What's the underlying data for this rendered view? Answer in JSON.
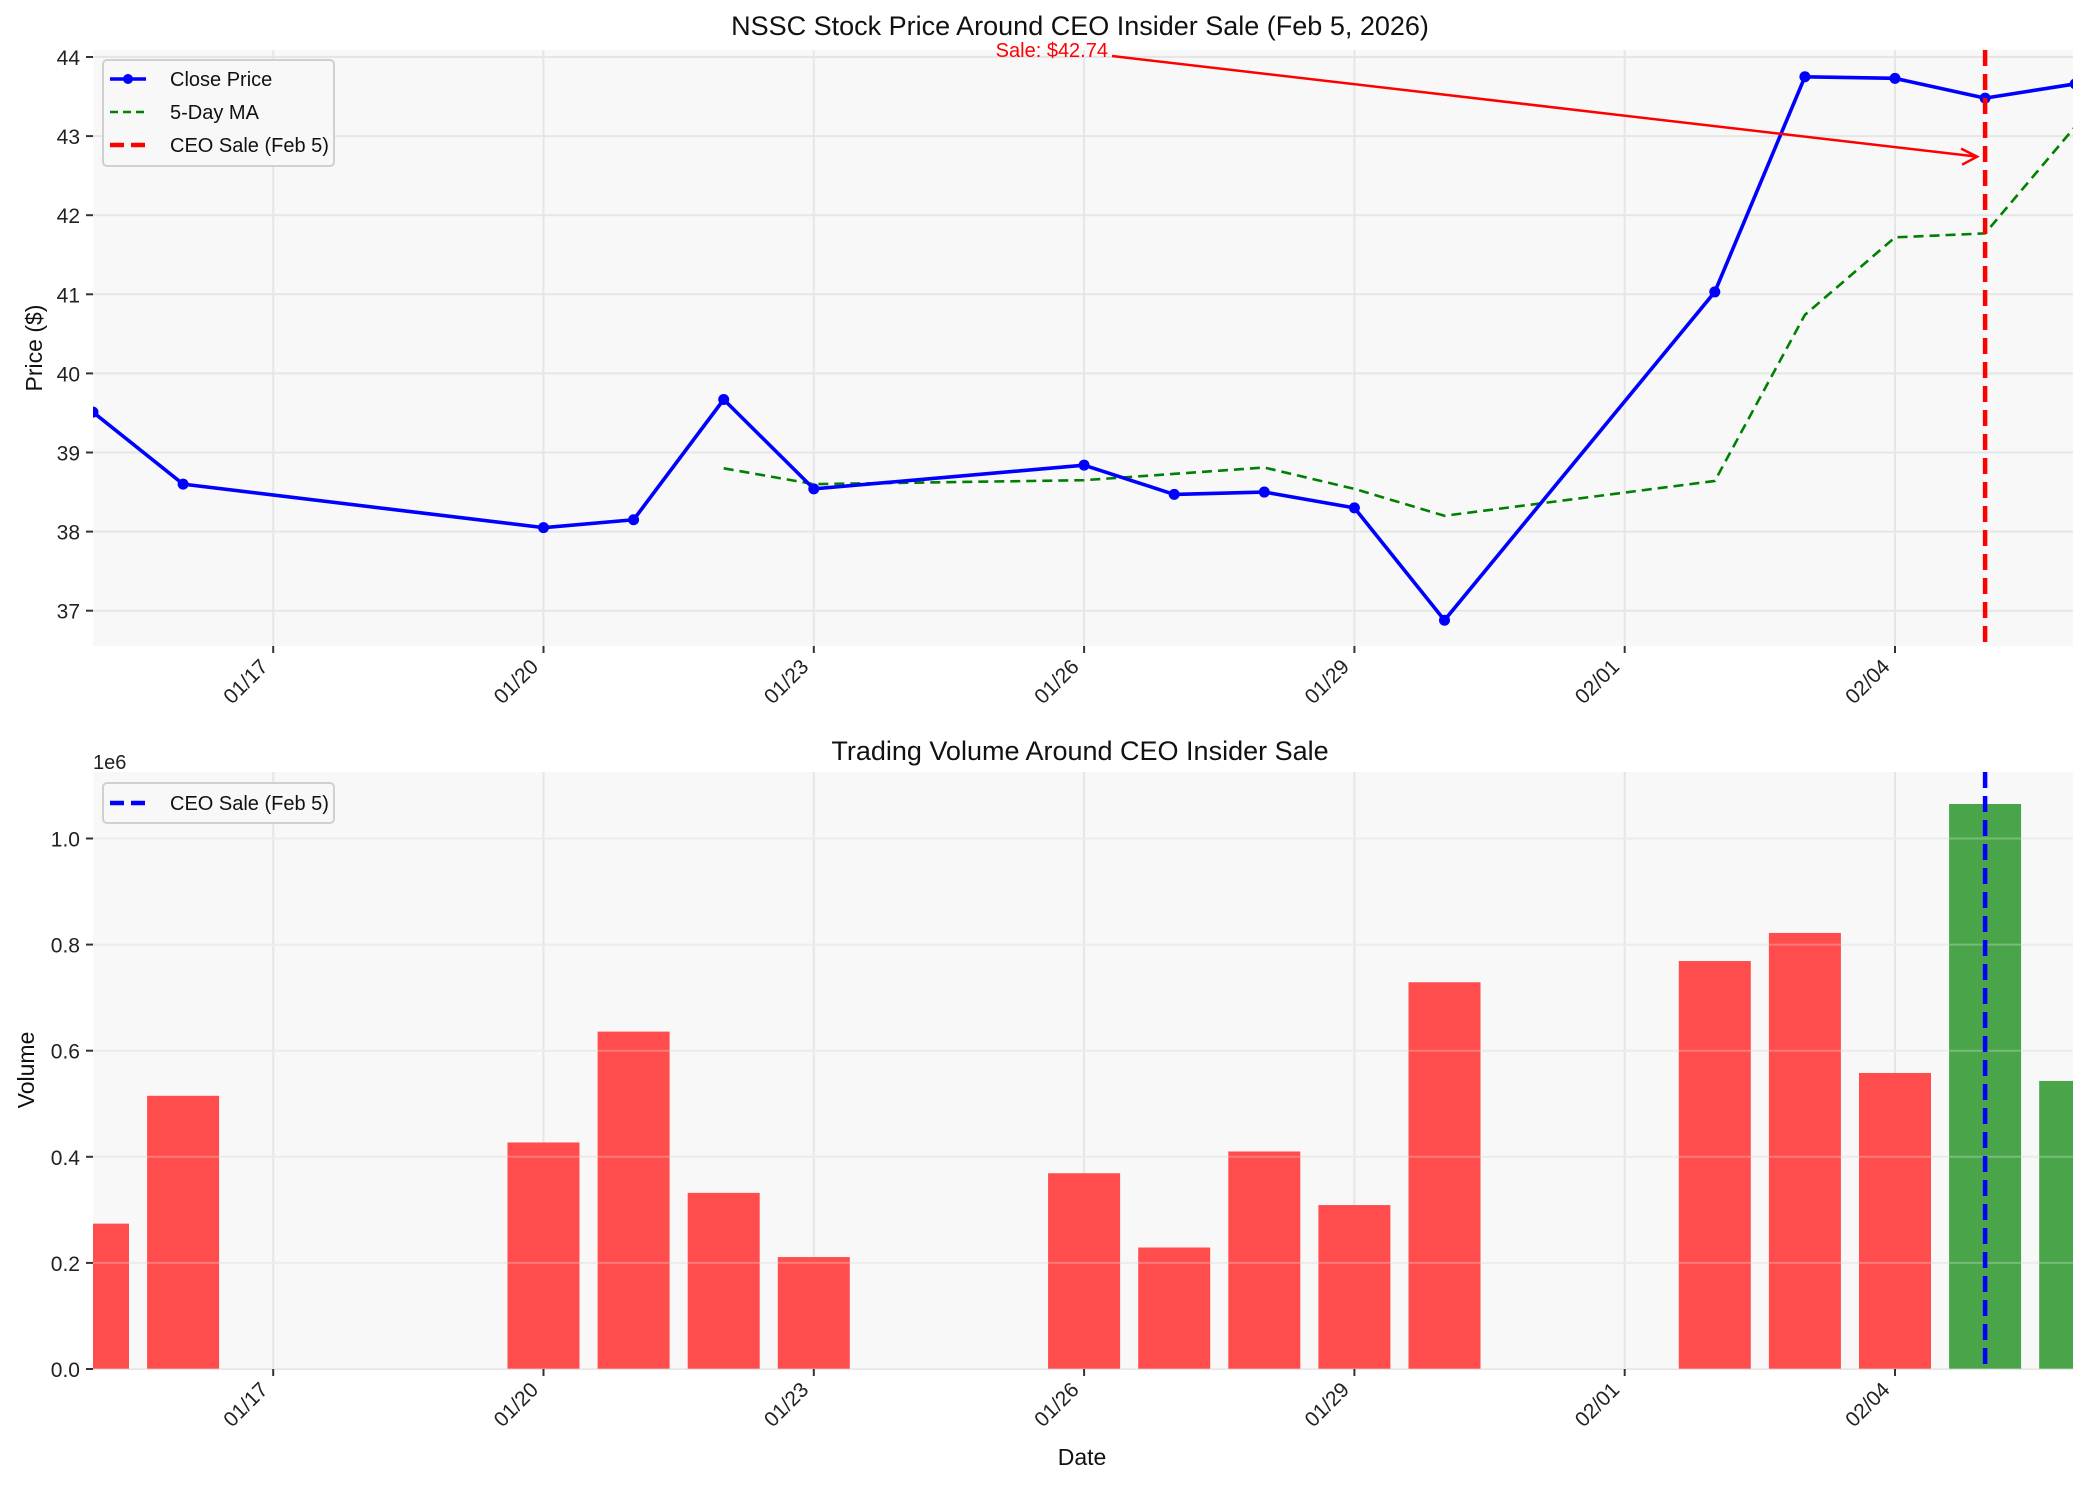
{
  "chart_data": [
    {
      "type": "line",
      "title": "NSSC Stock Price Around CEO Insider Sale (Feb 5, 2026)",
      "xlabel": "",
      "ylabel": "Price ($)",
      "ylim": [
        36.55,
        44.1
      ],
      "yticks": [
        37,
        38,
        39,
        40,
        41,
        42,
        43,
        44
      ],
      "grid": true,
      "legend_position": "upper left",
      "x_ticks": [
        "01/17",
        "01/20",
        "01/23",
        "01/26",
        "01/29",
        "02/01",
        "02/04"
      ],
      "x": [
        "01/15",
        "01/16",
        "01/20",
        "01/21",
        "01/22",
        "01/23",
        "01/26",
        "01/27",
        "01/28",
        "01/29",
        "01/30",
        "02/02",
        "02/03",
        "02/04",
        "02/05",
        "02/06"
      ],
      "series": [
        {
          "name": "Close Price",
          "color": "#0000ff",
          "style": "solid-marker",
          "values": [
            39.51,
            38.6,
            38.05,
            38.15,
            39.67,
            38.54,
            38.84,
            38.47,
            38.5,
            38.3,
            36.88,
            41.03,
            43.75,
            43.73,
            43.48,
            43.66
          ]
        },
        {
          "name": "5-Day MA",
          "color": "#008000",
          "style": "dashed",
          "values": [
            null,
            null,
            null,
            null,
            38.8,
            38.6,
            38.65,
            38.73,
            38.81,
            38.54,
            38.2,
            38.64,
            40.74,
            41.72,
            41.77,
            43.12
          ]
        }
      ],
      "vline": {
        "name": "CEO Sale (Feb 5)",
        "x": "02/05",
        "color": "#ff0000",
        "style": "dashed"
      },
      "annotation": {
        "text": "Sale: $42.74",
        "color": "#ff0000",
        "arrow_to": {
          "x": "02/05",
          "y": 42.74
        }
      }
    },
    {
      "type": "bar",
      "title": "Trading Volume Around CEO Insider Sale",
      "xlabel": "Date",
      "ylabel": "Volume",
      "y_offset_label": "1e6",
      "ylim": [
        0,
        1.12
      ],
      "yticks": [
        0.0,
        0.2,
        0.4,
        0.6,
        0.8,
        1.0
      ],
      "grid": true,
      "legend_position": "upper left",
      "x_ticks": [
        "01/17",
        "01/20",
        "01/23",
        "01/26",
        "01/29",
        "02/01",
        "02/04"
      ],
      "categories": [
        "01/15",
        "01/16",
        "01/20",
        "01/21",
        "01/22",
        "01/23",
        "01/26",
        "01/27",
        "01/28",
        "01/29",
        "01/30",
        "02/02",
        "02/03",
        "02/04",
        "02/05",
        "02/06"
      ],
      "values": [
        0.274,
        0.515,
        0.427,
        0.636,
        0.332,
        0.211,
        0.369,
        0.229,
        0.41,
        0.309,
        0.729,
        0.769,
        0.822,
        0.558,
        1.065,
        0.543
      ],
      "bar_colors": [
        "red",
        "red",
        "red",
        "red",
        "red",
        "red",
        "red",
        "red",
        "red",
        "red",
        "red",
        "red",
        "red",
        "red",
        "green",
        "green"
      ],
      "color_map": {
        "red": "#ff4c4c",
        "green": "#4aa44a"
      },
      "vline": {
        "name": "CEO Sale (Feb 5)",
        "x": "02/05",
        "color": "#0000ff",
        "style": "dashed"
      }
    }
  ],
  "legends": {
    "price": [
      "Close Price",
      "5-Day MA",
      "CEO Sale (Feb 5)"
    ],
    "volume": [
      "CEO Sale (Feb 5)"
    ]
  }
}
